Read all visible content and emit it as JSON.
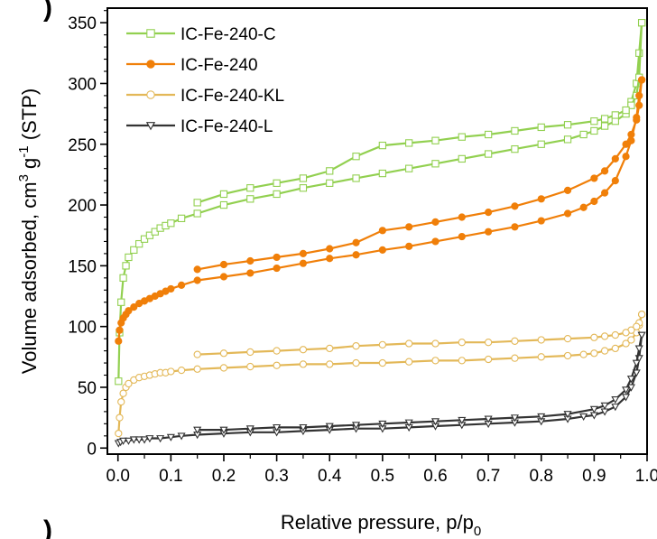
{
  "figure": {
    "panel_mark_top": ")",
    "panel_mark_bottom": ")"
  },
  "chart_data": {
    "type": "scatter",
    "xlabel": "Relative pressure, p/p",
    "xlabel_sub": "0",
    "ylabel": "Volume adsorbed, cm",
    "ylabel_sup1": "3",
    "ylabel_mid": " g",
    "ylabel_sup2": "-1",
    "ylabel_end": " (STP)",
    "xlim": [
      -0.02,
      1.0
    ],
    "ylim": [
      -5,
      362
    ],
    "x_ticks": [
      0.0,
      0.1,
      0.2,
      0.3,
      0.4,
      0.5,
      0.6,
      0.7,
      0.8,
      0.9,
      1.0
    ],
    "x_tick_labels": [
      "0.0",
      "0.1",
      "0.2",
      "0.3",
      "0.4",
      "0.5",
      "0.6",
      "0.7",
      "0.8",
      "0.9",
      "1.0"
    ],
    "y_ticks": [
      0,
      50,
      100,
      150,
      200,
      250,
      300,
      350
    ],
    "y_tick_labels": [
      "0",
      "50",
      "100",
      "150",
      "200",
      "250",
      "300",
      "350"
    ],
    "grid": false,
    "legend": "top-left",
    "series": [
      {
        "name": "IC-Fe-240-C",
        "color": "#92d050",
        "marker": "square",
        "adsorption": [
          [
            0.001,
            55
          ],
          [
            0.003,
            95
          ],
          [
            0.006,
            120
          ],
          [
            0.01,
            140
          ],
          [
            0.015,
            150
          ],
          [
            0.02,
            157
          ],
          [
            0.03,
            163
          ],
          [
            0.04,
            168
          ],
          [
            0.05,
            172
          ],
          [
            0.06,
            175
          ],
          [
            0.07,
            178
          ],
          [
            0.08,
            181
          ],
          [
            0.09,
            183
          ],
          [
            0.1,
            185
          ],
          [
            0.12,
            189
          ],
          [
            0.15,
            193
          ],
          [
            0.2,
            200
          ],
          [
            0.25,
            205
          ],
          [
            0.3,
            209
          ],
          [
            0.35,
            214
          ],
          [
            0.4,
            218
          ],
          [
            0.45,
            222
          ],
          [
            0.5,
            226
          ],
          [
            0.55,
            230
          ],
          [
            0.6,
            234
          ],
          [
            0.65,
            238
          ],
          [
            0.7,
            242
          ],
          [
            0.75,
            246
          ],
          [
            0.8,
            250
          ],
          [
            0.85,
            254
          ],
          [
            0.88,
            258
          ],
          [
            0.9,
            261
          ],
          [
            0.92,
            265
          ],
          [
            0.94,
            269
          ],
          [
            0.96,
            275
          ],
          [
            0.97,
            285
          ],
          [
            0.98,
            300
          ],
          [
            0.985,
            325
          ],
          [
            0.99,
            350
          ]
        ],
        "desorption": [
          [
            0.99,
            350
          ],
          [
            0.985,
            305
          ],
          [
            0.98,
            290
          ],
          [
            0.97,
            282
          ],
          [
            0.96,
            278
          ],
          [
            0.94,
            274
          ],
          [
            0.92,
            271
          ],
          [
            0.9,
            269
          ],
          [
            0.85,
            266
          ],
          [
            0.8,
            264
          ],
          [
            0.75,
            261
          ],
          [
            0.7,
            258
          ],
          [
            0.65,
            256
          ],
          [
            0.6,
            253
          ],
          [
            0.55,
            251
          ],
          [
            0.5,
            249
          ],
          [
            0.45,
            240
          ],
          [
            0.4,
            228
          ],
          [
            0.35,
            222
          ],
          [
            0.3,
            218
          ],
          [
            0.25,
            214
          ],
          [
            0.2,
            209
          ],
          [
            0.15,
            202
          ]
        ]
      },
      {
        "name": "IC-Fe-240",
        "color": "#f07f09",
        "marker": "circle-filled",
        "adsorption": [
          [
            0.001,
            88
          ],
          [
            0.003,
            97
          ],
          [
            0.006,
            103
          ],
          [
            0.01,
            107
          ],
          [
            0.015,
            110
          ],
          [
            0.02,
            113
          ],
          [
            0.03,
            116
          ],
          [
            0.04,
            119
          ],
          [
            0.05,
            121
          ],
          [
            0.06,
            123
          ],
          [
            0.07,
            125
          ],
          [
            0.08,
            127
          ],
          [
            0.09,
            129
          ],
          [
            0.1,
            131
          ],
          [
            0.12,
            134
          ],
          [
            0.15,
            138
          ],
          [
            0.2,
            141
          ],
          [
            0.25,
            144
          ],
          [
            0.3,
            148
          ],
          [
            0.35,
            152
          ],
          [
            0.4,
            156
          ],
          [
            0.45,
            159
          ],
          [
            0.5,
            163
          ],
          [
            0.55,
            166
          ],
          [
            0.6,
            170
          ],
          [
            0.65,
            174
          ],
          [
            0.7,
            178
          ],
          [
            0.75,
            182
          ],
          [
            0.8,
            187
          ],
          [
            0.85,
            193
          ],
          [
            0.88,
            198
          ],
          [
            0.9,
            203
          ],
          [
            0.92,
            210
          ],
          [
            0.94,
            220
          ],
          [
            0.96,
            240
          ],
          [
            0.97,
            253
          ],
          [
            0.98,
            272
          ],
          [
            0.985,
            290
          ],
          [
            0.99,
            303
          ]
        ],
        "desorption": [
          [
            0.99,
            303
          ],
          [
            0.985,
            282
          ],
          [
            0.98,
            270
          ],
          [
            0.97,
            258
          ],
          [
            0.96,
            250
          ],
          [
            0.94,
            238
          ],
          [
            0.92,
            228
          ],
          [
            0.9,
            222
          ],
          [
            0.85,
            212
          ],
          [
            0.8,
            205
          ],
          [
            0.75,
            199
          ],
          [
            0.7,
            194
          ],
          [
            0.65,
            190
          ],
          [
            0.6,
            186
          ],
          [
            0.55,
            182
          ],
          [
            0.5,
            179
          ],
          [
            0.45,
            169
          ],
          [
            0.4,
            164
          ],
          [
            0.35,
            160
          ],
          [
            0.3,
            157
          ],
          [
            0.25,
            154
          ],
          [
            0.2,
            151
          ],
          [
            0.15,
            147
          ]
        ]
      },
      {
        "name": "IC-Fe-240-KL",
        "color": "#e3b858",
        "marker": "circle-open",
        "adsorption": [
          [
            0.001,
            12
          ],
          [
            0.003,
            25
          ],
          [
            0.006,
            38
          ],
          [
            0.01,
            45
          ],
          [
            0.015,
            50
          ],
          [
            0.02,
            53
          ],
          [
            0.03,
            56
          ],
          [
            0.04,
            58
          ],
          [
            0.05,
            59
          ],
          [
            0.06,
            60
          ],
          [
            0.07,
            61
          ],
          [
            0.08,
            62
          ],
          [
            0.09,
            62
          ],
          [
            0.1,
            63
          ],
          [
            0.12,
            64
          ],
          [
            0.15,
            65
          ],
          [
            0.2,
            66
          ],
          [
            0.25,
            67
          ],
          [
            0.3,
            68
          ],
          [
            0.35,
            69
          ],
          [
            0.4,
            69
          ],
          [
            0.45,
            70
          ],
          [
            0.5,
            70
          ],
          [
            0.55,
            71
          ],
          [
            0.6,
            72
          ],
          [
            0.65,
            72
          ],
          [
            0.7,
            73
          ],
          [
            0.75,
            74
          ],
          [
            0.8,
            75
          ],
          [
            0.85,
            76
          ],
          [
            0.88,
            77
          ],
          [
            0.9,
            78
          ],
          [
            0.92,
            80
          ],
          [
            0.94,
            82
          ],
          [
            0.96,
            86
          ],
          [
            0.97,
            89
          ],
          [
            0.98,
            95
          ],
          [
            0.985,
            101
          ],
          [
            0.99,
            110
          ]
        ],
        "desorption": [
          [
            0.99,
            110
          ],
          [
            0.985,
            103
          ],
          [
            0.98,
            100
          ],
          [
            0.97,
            97
          ],
          [
            0.96,
            95
          ],
          [
            0.94,
            93
          ],
          [
            0.92,
            92
          ],
          [
            0.9,
            91
          ],
          [
            0.85,
            90
          ],
          [
            0.8,
            89
          ],
          [
            0.75,
            88
          ],
          [
            0.7,
            87
          ],
          [
            0.65,
            87
          ],
          [
            0.6,
            86
          ],
          [
            0.55,
            86
          ],
          [
            0.5,
            85
          ],
          [
            0.45,
            84
          ],
          [
            0.4,
            82
          ],
          [
            0.35,
            81
          ],
          [
            0.3,
            80
          ],
          [
            0.25,
            79
          ],
          [
            0.2,
            78
          ],
          [
            0.15,
            77
          ]
        ]
      },
      {
        "name": "IC-Fe-240-L",
        "color": "#333333",
        "marker": "triangle-down-open",
        "adsorption": [
          [
            0.001,
            4
          ],
          [
            0.005,
            5
          ],
          [
            0.01,
            6
          ],
          [
            0.02,
            6
          ],
          [
            0.03,
            7
          ],
          [
            0.04,
            7
          ],
          [
            0.05,
            7
          ],
          [
            0.06,
            8
          ],
          [
            0.08,
            8
          ],
          [
            0.1,
            9
          ],
          [
            0.12,
            10
          ],
          [
            0.15,
            11
          ],
          [
            0.2,
            12
          ],
          [
            0.25,
            13
          ],
          [
            0.3,
            13
          ],
          [
            0.35,
            14
          ],
          [
            0.4,
            15
          ],
          [
            0.45,
            16
          ],
          [
            0.5,
            16
          ],
          [
            0.55,
            17
          ],
          [
            0.6,
            18
          ],
          [
            0.65,
            19
          ],
          [
            0.7,
            20
          ],
          [
            0.75,
            21
          ],
          [
            0.8,
            22
          ],
          [
            0.85,
            24
          ],
          [
            0.88,
            26
          ],
          [
            0.9,
            27
          ],
          [
            0.92,
            30
          ],
          [
            0.94,
            34
          ],
          [
            0.96,
            42
          ],
          [
            0.97,
            50
          ],
          [
            0.98,
            62
          ],
          [
            0.985,
            74
          ],
          [
            0.99,
            93
          ]
        ],
        "desorption": [
          [
            0.99,
            93
          ],
          [
            0.985,
            82
          ],
          [
            0.98,
            70
          ],
          [
            0.97,
            57
          ],
          [
            0.96,
            48
          ],
          [
            0.94,
            40
          ],
          [
            0.92,
            35
          ],
          [
            0.9,
            32
          ],
          [
            0.85,
            28
          ],
          [
            0.8,
            26
          ],
          [
            0.75,
            25
          ],
          [
            0.7,
            24
          ],
          [
            0.65,
            23
          ],
          [
            0.6,
            22
          ],
          [
            0.55,
            21
          ],
          [
            0.5,
            20
          ],
          [
            0.45,
            19
          ],
          [
            0.4,
            18
          ],
          [
            0.35,
            17
          ],
          [
            0.3,
            17
          ],
          [
            0.25,
            16
          ],
          [
            0.2,
            15
          ],
          [
            0.15,
            15
          ]
        ]
      }
    ]
  }
}
